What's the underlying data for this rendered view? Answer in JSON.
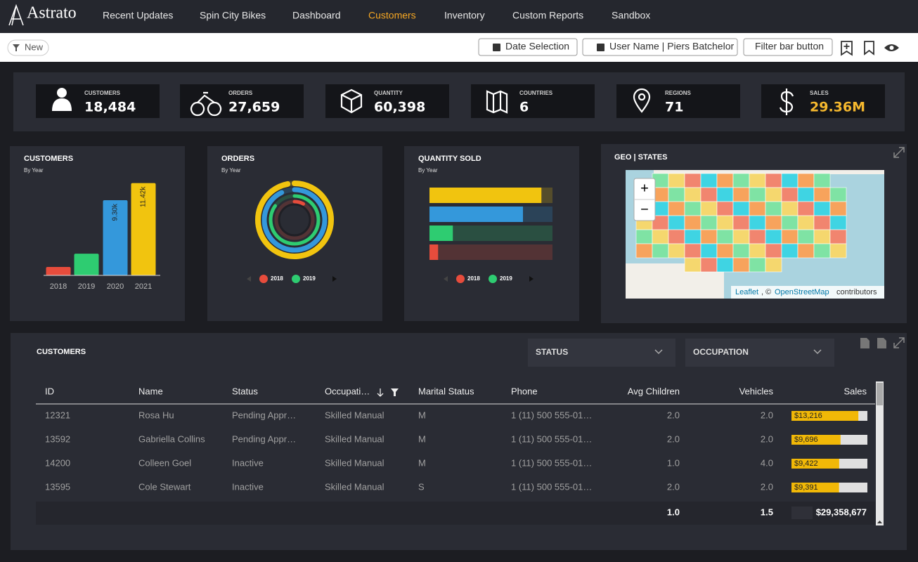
{
  "nav": {
    "logo": "Astrato",
    "items": [
      "Recent Updates",
      "Spin City Bikes",
      "Dashboard",
      "Customers",
      "Inventory",
      "Custom Reports",
      "Sandbox"
    ],
    "active": 3
  },
  "toolbar": {
    "new": "New",
    "buttons": [
      "Date Selection",
      "User Name | Piers Batchelor",
      "Filter bar button"
    ]
  },
  "kpis": [
    {
      "label": "CUSTOMERS",
      "value": "18,484"
    },
    {
      "label": "ORDERS",
      "value": "27,659"
    },
    {
      "label": "QUANTITY",
      "value": "60,398"
    },
    {
      "label": "COUNTRIES",
      "value": "6"
    },
    {
      "label": "REGIONS",
      "value": "71"
    },
    {
      "label": "SALES",
      "value": "29.36M"
    }
  ],
  "charts": [
    {
      "type": "bar",
      "title": "CUSTOMERS",
      "subtitle": "By Year",
      "categories": [
        "2018",
        "2019",
        "2020",
        "2021"
      ],
      "values": [
        1040,
        2680,
        9300,
        11420
      ],
      "value_labels": [
        null,
        null,
        "9.30k",
        "11.42k"
      ],
      "colors": [
        "#e74c3c",
        "#2ecc71",
        "#3498db",
        "#f1c40f"
      ],
      "ylim": [
        0,
        12000
      ]
    },
    {
      "type": "radial",
      "title": "ORDERS",
      "subtitle": "By Year",
      "categories": [
        "2018",
        "2019",
        null,
        null
      ],
      "values": [
        8,
        85,
        93,
        97
      ],
      "colors": [
        "#e74c3c",
        "#2ecc71",
        "#3498db",
        "#f1c40f"
      ],
      "ylim": [
        0,
        100
      ]
    },
    {
      "type": "hbar",
      "title": "QUANTITY SOLD",
      "subtitle": "By Year",
      "categories": [
        "2018",
        "2019",
        null,
        null
      ],
      "values": [
        7,
        19,
        76,
        91
      ],
      "colors": [
        "#e74c3c",
        "#2ecc71",
        "#3498db",
        "#f1c40f"
      ],
      "xlim": [
        0,
        100
      ]
    }
  ],
  "geo": {
    "title": "GEO | STATES",
    "zoom_in": "+",
    "zoom_out": "−",
    "attribution": {
      "link1": "Leaflet",
      "sep": ", ©",
      "link2": "OpenStreetMap",
      "tail": "contributors"
    }
  },
  "table": {
    "title": "CUSTOMERS",
    "filters": [
      "STATUS",
      "OCCUPATION"
    ],
    "columns": [
      "ID",
      "Name",
      "Status",
      "Occupati…",
      "Marital Status",
      "Phone",
      "Avg Children",
      "Vehicles",
      "Sales"
    ],
    "rows": [
      [
        "12321",
        "Rosa Hu",
        "Pending Appr…",
        "Skilled Manual",
        "M",
        "1 (11) 500 555-01…",
        "2.0",
        "2.0"
      ],
      [
        "13592",
        "Gabriella Collins",
        "Pending Appr…",
        "Skilled Manual",
        "M",
        "1 (11) 500 555-01…",
        "2.0",
        "2.0"
      ],
      [
        "14200",
        "Colleen Goel",
        "Inactive",
        "Skilled Manual",
        "M",
        "1 (11) 500 555-01…",
        "1.0",
        "4.0"
      ],
      [
        "13595",
        "Cole Stewart",
        "Inactive",
        "Skilled Manual",
        "S",
        "1 (11) 500 555-01…",
        "2.0",
        "2.0"
      ]
    ],
    "sales": [
      13216,
      9696,
      9422,
      9391
    ],
    "sales_labels": [
      "$13,216",
      "$9,696",
      "$9,422",
      "$9,391"
    ],
    "sales_lim": [
      0,
      15000
    ],
    "totals": {
      "avg_children": "1.0",
      "vehicles": "1.5",
      "sales": "$29,358,677"
    }
  }
}
